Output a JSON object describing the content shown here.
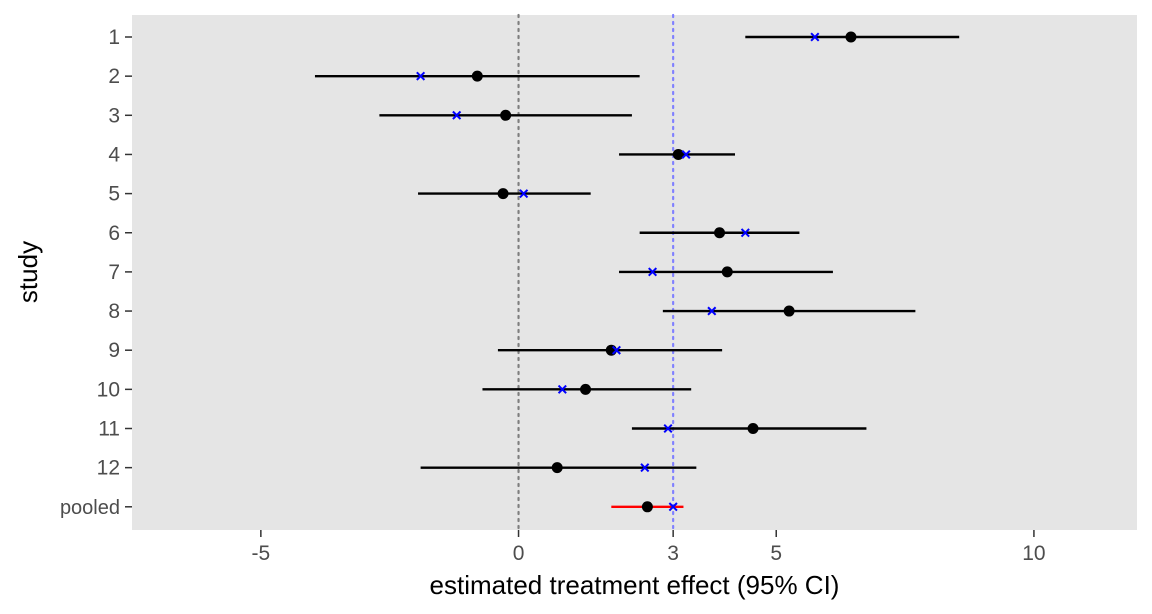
{
  "chart_data": {
    "type": "forest",
    "xlabel": "estimated treatment effect (95% CI)",
    "ylabel": "study",
    "xlim": [
      -7.5,
      12.0
    ],
    "x_ticks": [
      -5,
      0,
      3,
      5,
      10
    ],
    "x_tick_labels": [
      "-5",
      "0",
      "3",
      "5",
      "10"
    ],
    "grid": false,
    "reference_lines": [
      {
        "x": 0,
        "color": "#7f7f7f",
        "style": "dotted"
      },
      {
        "x": 3.0,
        "color": "#8080ff",
        "style": "dotted"
      }
    ],
    "marker_colors": {
      "estimate": "#000000",
      "shrunken": "#0000ff",
      "ci": "#000000",
      "pooled_ci": "#ff0000"
    },
    "studies": [
      {
        "label": "1",
        "estimate": 6.45,
        "lower": 4.4,
        "upper": 8.55,
        "shrunken": 5.75
      },
      {
        "label": "2",
        "estimate": -0.8,
        "lower": -3.95,
        "upper": 2.35,
        "shrunken": -1.9
      },
      {
        "label": "3",
        "estimate": -0.25,
        "lower": -2.7,
        "upper": 2.2,
        "shrunken": -1.2
      },
      {
        "label": "4",
        "estimate": 3.1,
        "lower": 1.95,
        "upper": 4.2,
        "shrunken": 3.25
      },
      {
        "label": "5",
        "estimate": -0.3,
        "lower": -1.95,
        "upper": 1.4,
        "shrunken": 0.1
      },
      {
        "label": "6",
        "estimate": 3.9,
        "lower": 2.35,
        "upper": 5.45,
        "shrunken": 4.4
      },
      {
        "label": "7",
        "estimate": 4.05,
        "lower": 1.95,
        "upper": 6.1,
        "shrunken": 2.6
      },
      {
        "label": "8",
        "estimate": 5.25,
        "lower": 2.8,
        "upper": 7.7,
        "shrunken": 3.75
      },
      {
        "label": "9",
        "estimate": 1.8,
        "lower": -0.4,
        "upper": 3.95,
        "shrunken": 1.9
      },
      {
        "label": "10",
        "estimate": 1.3,
        "lower": -0.7,
        "upper": 3.35,
        "shrunken": 0.85
      },
      {
        "label": "11",
        "estimate": 4.55,
        "lower": 2.2,
        "upper": 6.75,
        "shrunken": 2.9
      },
      {
        "label": "12",
        "estimate": 0.75,
        "lower": -1.9,
        "upper": 3.45,
        "shrunken": 2.45
      },
      {
        "label": "pooled",
        "estimate": 2.5,
        "lower": 1.8,
        "upper": 3.2,
        "shrunken": 3.0,
        "pooled": true
      }
    ]
  }
}
